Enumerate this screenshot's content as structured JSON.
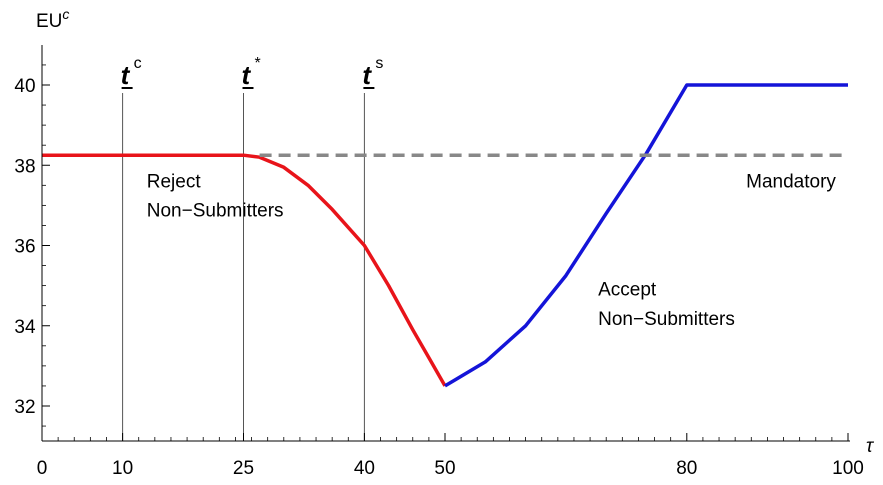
{
  "chart_data": {
    "type": "line",
    "xlabel": "τ",
    "ylabel_main": "EU",
    "ylabel_sup": "c",
    "xlim": [
      0,
      100
    ],
    "ylim": [
      31,
      41
    ],
    "x_ticks": [
      0,
      10,
      25,
      40,
      50,
      80,
      100
    ],
    "y_ticks": [
      32,
      34,
      36,
      38,
      40
    ],
    "grid": false,
    "series": [
      {
        "name": "",
        "color": "#e8141a",
        "style": "solid",
        "x": [
          0,
          25,
          27,
          30,
          33,
          36,
          40,
          43,
          46,
          48,
          50
        ],
        "y": [
          38.25,
          38.25,
          38.2,
          37.95,
          37.5,
          36.9,
          36.0,
          35.0,
          33.9,
          33.2,
          32.5
        ]
      },
      {
        "name": "",
        "color": "#1414d8",
        "style": "solid",
        "x": [
          50,
          55,
          60,
          65,
          70,
          75,
          80,
          90,
          100
        ],
        "y": [
          32.5,
          33.1,
          34.0,
          35.25,
          36.8,
          38.3,
          40.0,
          40.0,
          40.0
        ]
      },
      {
        "name": "",
        "color": "#888888",
        "style": "dashed",
        "x": [
          27,
          100
        ],
        "y": [
          38.25,
          38.25
        ]
      }
    ],
    "vlines": [
      {
        "x": 10,
        "label": "t",
        "sup": "c"
      },
      {
        "x": 25,
        "label": "t",
        "sup": "*"
      },
      {
        "x": 40,
        "label": "t",
        "sup": "s"
      }
    ],
    "annotations": [
      {
        "text": "Reject",
        "x": 13,
        "y": 37.45,
        "anchor": "start"
      },
      {
        "text": "Non−Submitters",
        "x": 13,
        "y": 36.72,
        "anchor": "start"
      },
      {
        "text": "Mandatory",
        "x": 98.5,
        "y": 37.45,
        "anchor": "end"
      },
      {
        "text": "Accept",
        "x": 69,
        "y": 34.75,
        "anchor": "start"
      },
      {
        "text": "Non−Submitters",
        "x": 69,
        "y": 34.02,
        "anchor": "start"
      }
    ]
  }
}
